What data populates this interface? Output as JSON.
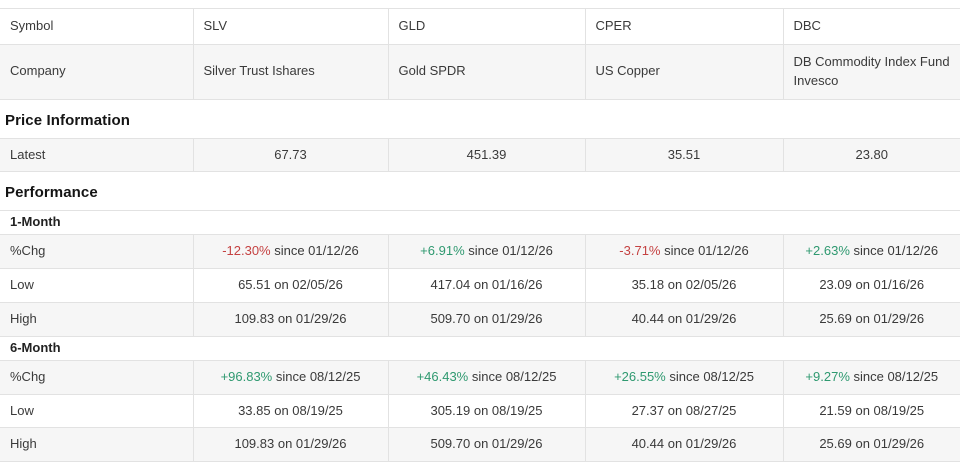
{
  "header": {
    "symbol_label": "Symbol",
    "company_label": "Company",
    "columns": [
      {
        "symbol": "SLV",
        "company": "Silver Trust Ishares"
      },
      {
        "symbol": "GLD",
        "company": "Gold SPDR"
      },
      {
        "symbol": "CPER",
        "company": "US Copper"
      },
      {
        "symbol": "DBC",
        "company": "DB Commodity Index Fund Invesco"
      }
    ]
  },
  "price_information": {
    "title": "Price Information",
    "latest_label": "Latest",
    "latest": [
      "67.73",
      "451.39",
      "35.51",
      "23.80"
    ]
  },
  "performance": {
    "title": "Performance",
    "row_labels": {
      "chg": "%Chg",
      "low": "Low",
      "high": "High"
    },
    "periods": [
      {
        "label": "1-Month",
        "chg": [
          {
            "pct": "-12.30%",
            "rest": " since 01/12/26",
            "dir": "neg"
          },
          {
            "pct": "+6.91%",
            "rest": " since 01/12/26",
            "dir": "pos"
          },
          {
            "pct": "-3.71%",
            "rest": " since 01/12/26",
            "dir": "neg"
          },
          {
            "pct": "+2.63%",
            "rest": " since 01/12/26",
            "dir": "pos"
          }
        ],
        "low": [
          "65.51 on 02/05/26",
          "417.04 on 01/16/26",
          "35.18 on 02/05/26",
          "23.09 on 01/16/26"
        ],
        "high": [
          "109.83 on 01/29/26",
          "509.70 on 01/29/26",
          "40.44 on 01/29/26",
          "25.69 on 01/29/26"
        ]
      },
      {
        "label": "6-Month",
        "chg": [
          {
            "pct": "+96.83%",
            "rest": " since 08/12/25",
            "dir": "pos"
          },
          {
            "pct": "+46.43%",
            "rest": " since 08/12/25",
            "dir": "pos"
          },
          {
            "pct": "+26.55%",
            "rest": " since 08/12/25",
            "dir": "pos"
          },
          {
            "pct": "+9.27%",
            "rest": " since 08/12/25",
            "dir": "pos"
          }
        ],
        "low": [
          "33.85 on 08/19/25",
          "305.19 on 08/19/25",
          "27.37 on 08/27/25",
          "21.59 on 08/19/25"
        ],
        "high": [
          "109.83 on 01/29/26",
          "509.70 on 01/29/26",
          "40.44 on 01/29/26",
          "25.69 on 01/29/26"
        ]
      }
    ]
  },
  "colors": {
    "positive": "#2f9970",
    "negative": "#c54242"
  }
}
